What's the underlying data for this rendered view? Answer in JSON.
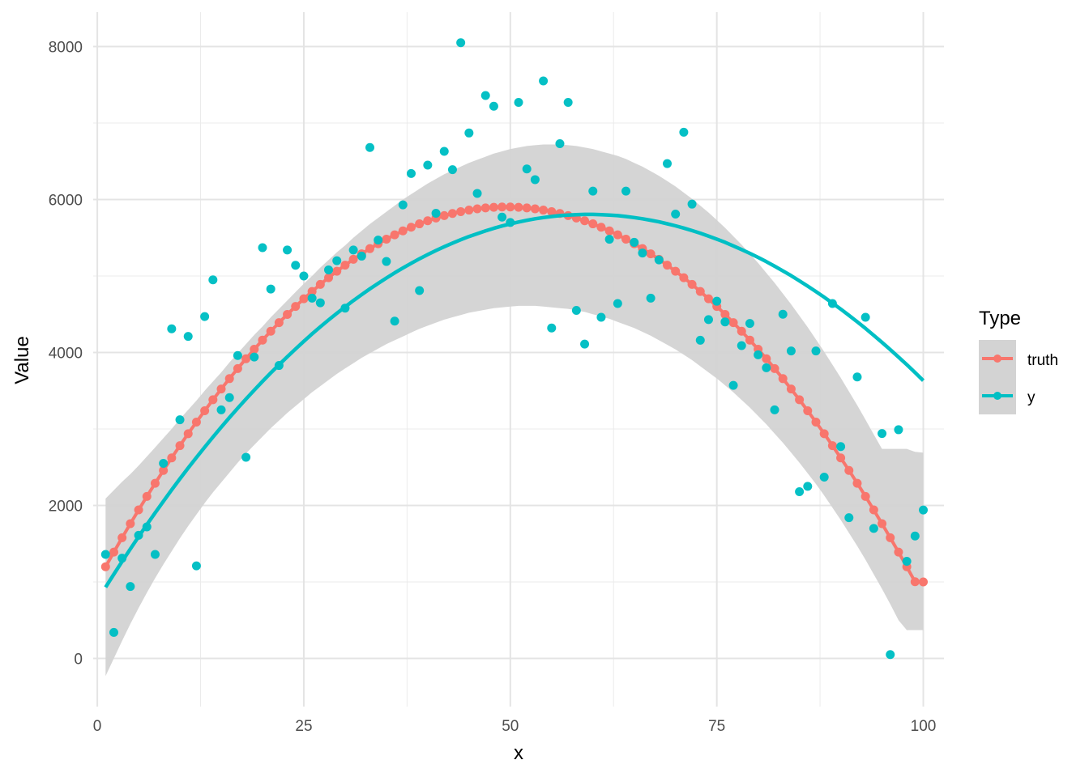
{
  "chart_data": {
    "type": "scatter",
    "xlabel": "x",
    "ylabel": "Value",
    "xlim": [
      -0.5,
      102.5
    ],
    "ylim": [
      -630,
      8450
    ],
    "x_ticks": [
      0,
      25,
      50,
      75,
      100
    ],
    "x_tick_labels": [
      "0",
      "25",
      "50",
      "75",
      "100"
    ],
    "y_ticks": [
      0,
      2000,
      4000,
      6000,
      8000
    ],
    "y_tick_labels": [
      "0",
      "2000",
      "4000",
      "6000",
      "8000"
    ],
    "grid": true,
    "legend": {
      "title": "Type",
      "position": "right",
      "entries": [
        {
          "label": "truth",
          "color": "#F8766D"
        },
        {
          "label": "y",
          "color": "#00BFC4"
        }
      ]
    },
    "colors": {
      "truth": "#F8766D",
      "y": "#00BFC4",
      "ribbon": "#D3D3D3"
    },
    "series": [
      {
        "name": "truth",
        "kind": "line+points",
        "formula_note": "",
        "x": [
          1,
          2,
          3,
          4,
          5,
          6,
          7,
          8,
          9,
          10,
          11,
          12,
          13,
          14,
          15,
          16,
          17,
          18,
          19,
          20,
          21,
          22,
          23,
          24,
          25,
          26,
          27,
          28,
          29,
          30,
          31,
          32,
          33,
          34,
          35,
          36,
          37,
          38,
          39,
          40,
          41,
          42,
          43,
          44,
          45,
          46,
          47,
          48,
          49,
          50,
          51,
          52,
          53,
          54,
          55,
          56,
          57,
          58,
          59,
          60,
          61,
          62,
          63,
          64,
          65,
          66,
          67,
          68,
          69,
          70,
          71,
          72,
          73,
          74,
          75,
          76,
          77,
          78,
          79,
          80,
          81,
          82,
          83,
          84,
          85,
          86,
          87,
          88,
          89,
          90,
          91,
          92,
          93,
          94,
          95,
          96,
          97,
          98,
          99,
          100
        ],
        "y": [
          1198,
          1390,
          1578,
          1762,
          1942,
          2118,
          2290,
          2458,
          2622,
          2782,
          2938,
          3090,
          3238,
          3382,
          3522,
          3658,
          3790,
          3918,
          4042,
          4162,
          4278,
          4390,
          4498,
          4602,
          4702,
          4798,
          4890,
          4978,
          5062,
          5142,
          5218,
          5290,
          5358,
          5422,
          5482,
          5538,
          5590,
          5638,
          5682,
          5722,
          5758,
          5790,
          5818,
          5842,
          5862,
          5878,
          5890,
          5898,
          5902,
          5902,
          5898,
          5890,
          5878,
          5862,
          5842,
          5818,
          5790,
          5758,
          5722,
          5682,
          5638,
          5590,
          5538,
          5482,
          5422,
          5358,
          5290,
          5218,
          5142,
          5062,
          4978,
          4890,
          4798,
          4702,
          4602,
          4498,
          4390,
          4278,
          4162,
          4042,
          3918,
          3790,
          3658,
          3522,
          3382,
          3238,
          3090,
          2938,
          2782,
          2622,
          2458,
          2290,
          2118,
          1942,
          1762,
          1578,
          1390,
          1198,
          1002,
          1000
        ]
      },
      {
        "name": "y",
        "kind": "points",
        "x": [
          1,
          2,
          3,
          4,
          5,
          6,
          7,
          8,
          9,
          10,
          11,
          12,
          13,
          14,
          15,
          16,
          17,
          18,
          19,
          20,
          21,
          22,
          23,
          24,
          25,
          26,
          27,
          28,
          29,
          30,
          31,
          32,
          33,
          34,
          35,
          36,
          37,
          38,
          39,
          40,
          41,
          42,
          43,
          44,
          45,
          46,
          47,
          48,
          49,
          50,
          51,
          52,
          53,
          54,
          55,
          56,
          57,
          58,
          59,
          60,
          61,
          62,
          63,
          64,
          65,
          66,
          67,
          68,
          69,
          70,
          71,
          72,
          73,
          74,
          75,
          76,
          77,
          78,
          79,
          80,
          81,
          82,
          83,
          84,
          85,
          86,
          87,
          88,
          89,
          90,
          91,
          92,
          93,
          94,
          95,
          96,
          97,
          98,
          99,
          100
        ],
        "y": [
          1360,
          340,
          1310,
          940,
          1610,
          1720,
          1360,
          2550,
          4310,
          3120,
          4210,
          1210,
          4470,
          4950,
          3250,
          3410,
          3960,
          2630,
          3940,
          5370,
          4830,
          3830,
          5340,
          5140,
          5000,
          4710,
          4650,
          5080,
          5200,
          4580,
          5340,
          5260,
          6680,
          5470,
          5190,
          4410,
          5930,
          6340,
          4810,
          6450,
          5820,
          6630,
          6390,
          8050,
          6870,
          6080,
          7360,
          7220,
          5770,
          5700,
          7270,
          6400,
          6260,
          7550,
          4320,
          6730,
          7270,
          4550,
          4110,
          6110,
          4460,
          5480,
          4640,
          6110,
          5440,
          5300,
          4710,
          5210,
          6470,
          5810,
          6880,
          5940,
          4160,
          4430,
          4670,
          4400,
          3570,
          4090,
          4380,
          3970,
          3800,
          3250,
          4500,
          4020,
          2180,
          2250,
          4020,
          2370,
          4640,
          2770,
          1840,
          3680,
          4460,
          1700,
          2940,
          50,
          2990,
          1270,
          1600,
          1940
        ]
      },
      {
        "name": "y",
        "kind": "smooth",
        "x": [
          1,
          2,
          3,
          4,
          5,
          6,
          7,
          8,
          9,
          10,
          11,
          12,
          13,
          14,
          15,
          16,
          17,
          18,
          19,
          20,
          21,
          22,
          23,
          24,
          25,
          26,
          27,
          28,
          29,
          30,
          31,
          32,
          33,
          34,
          35,
          36,
          37,
          38,
          39,
          40,
          41,
          42,
          43,
          44,
          45,
          46,
          47,
          48,
          49,
          50,
          51,
          52,
          53,
          54,
          55,
          56,
          57,
          58,
          59,
          60,
          61,
          62,
          63,
          64,
          65,
          66,
          67,
          68,
          69,
          70,
          71,
          72,
          73,
          74,
          75,
          76,
          77,
          78,
          79,
          80,
          81,
          82,
          83,
          84,
          85,
          86,
          87,
          88,
          89,
          90,
          91,
          92,
          93,
          94,
          95,
          96,
          97,
          98,
          99,
          100
        ],
        "y": [
          930,
          1100,
          1268,
          1432,
          1592,
          1750,
          1904,
          2055,
          2203,
          2348,
          2489,
          2627,
          2762,
          2894,
          3023,
          3149,
          3272,
          3391,
          3508,
          3622,
          3733,
          3840,
          3945,
          4047,
          4146,
          4242,
          4335,
          4425,
          4512,
          4596,
          4678,
          4756,
          4832,
          4904,
          4974,
          5041,
          5105,
          5166,
          5225,
          5280,
          5333,
          5383,
          5430,
          5474,
          5516,
          5554,
          5590,
          5623,
          5654,
          5681,
          5706,
          5728,
          5748,
          5764,
          5778,
          5789,
          5797,
          5802,
          5805,
          5805,
          5802,
          5797,
          5789,
          5778,
          5764,
          5748,
          5729,
          5708,
          5683,
          5656,
          5627,
          5594,
          5560,
          5522,
          5482,
          5440,
          5394,
          5346,
          5296,
          5243,
          5187,
          5128,
          5067,
          5004,
          4937,
          4868,
          4797,
          4723,
          4646,
          4567,
          4485,
          4401,
          4314,
          4224,
          4132,
          4038,
          3940,
          3841,
          3738,
          3633
        ],
        "lower": [
          -230,
          0,
          230,
          450,
          660,
          860,
          1050,
          1230,
          1400,
          1570,
          1730,
          1880,
          2030,
          2170,
          2300,
          2430,
          2560,
          2680,
          2790,
          2900,
          3010,
          3110,
          3210,
          3300,
          3390,
          3480,
          3560,
          3640,
          3720,
          3790,
          3860,
          3930,
          3990,
          4050,
          4110,
          4160,
          4210,
          4260,
          4310,
          4350,
          4390,
          4430,
          4460,
          4490,
          4520,
          4540,
          4560,
          4580,
          4590,
          4600,
          4610,
          4610,
          4610,
          4600,
          4590,
          4580,
          4570,
          4550,
          4530,
          4500,
          4470,
          4440,
          4400,
          4360,
          4320,
          4270,
          4220,
          4160,
          4100,
          4040,
          3970,
          3900,
          3820,
          3740,
          3660,
          3570,
          3480,
          3380,
          3280,
          3170,
          3060,
          2940,
          2820,
          2690,
          2560,
          2420,
          2280,
          2130,
          1970,
          1810,
          1640,
          1470,
          1290,
          1100,
          910,
          710,
          500,
          370,
          370,
          370
        ],
        "upper": [
          2090,
          2200,
          2310,
          2410,
          2520,
          2640,
          2760,
          2880,
          3000,
          3130,
          3250,
          3370,
          3500,
          3620,
          3740,
          3870,
          3990,
          4110,
          4230,
          4340,
          4460,
          4570,
          4680,
          4790,
          4900,
          5000,
          5110,
          5210,
          5310,
          5400,
          5500,
          5590,
          5680,
          5760,
          5840,
          5920,
          6000,
          6070,
          6140,
          6210,
          6270,
          6330,
          6380,
          6430,
          6480,
          6520,
          6560,
          6600,
          6630,
          6660,
          6680,
          6700,
          6710,
          6720,
          6720,
          6720,
          6710,
          6700,
          6680,
          6660,
          6630,
          6600,
          6570,
          6530,
          6480,
          6430,
          6370,
          6310,
          6240,
          6170,
          6090,
          6010,
          5920,
          5830,
          5730,
          5630,
          5520,
          5410,
          5290,
          5170,
          5040,
          4910,
          4770,
          4630,
          4480,
          4330,
          4170,
          4010,
          3840,
          3670,
          3490,
          3310,
          3120,
          2930,
          2740,
          2740,
          2740,
          2740,
          2700,
          2690
        ]
      }
    ]
  }
}
